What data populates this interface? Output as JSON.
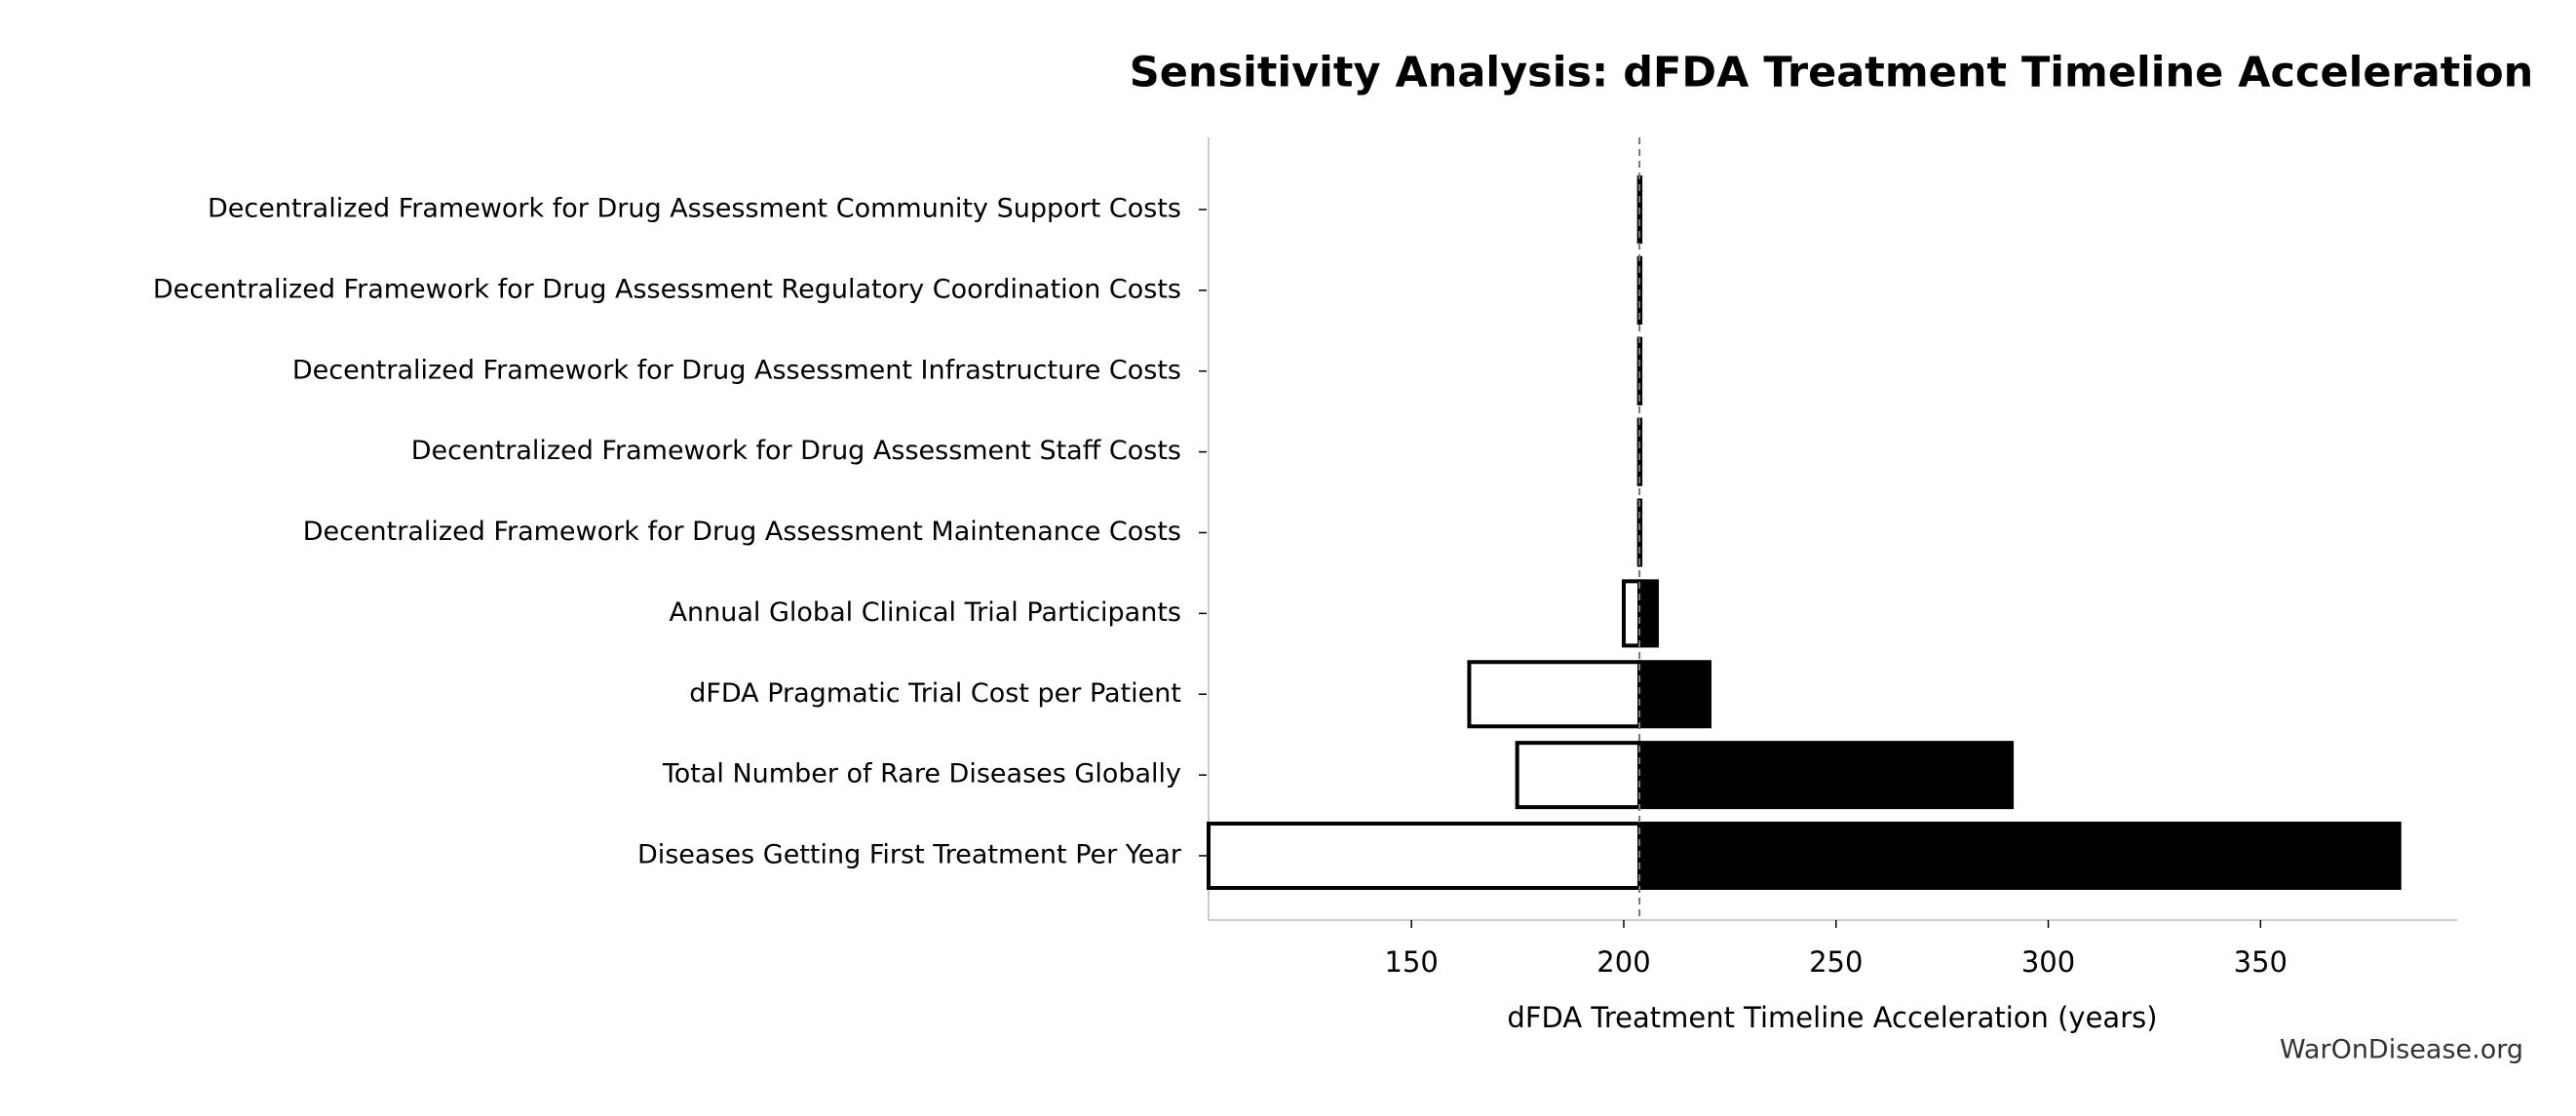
{
  "chart_data": {
    "type": "tornado",
    "title": "Sensitivity Analysis: dFDA Treatment Timeline Acceleration",
    "xlabel": "dFDA Treatment Timeline Acceleration (years)",
    "watermark": "WarOnDisease.org",
    "categories": [
      "Decentralized Framework for Drug Assessment Community Support Costs",
      "Decentralized Framework for Drug Assessment Regulatory Coordination Costs",
      "Decentralized Framework for Drug Assessment Infrastructure Costs",
      "Decentralized Framework for Drug Assessment Staff Costs",
      "Decentralized Framework for Drug Assessment Maintenance Costs",
      "Annual Global Clinical Trial Participants",
      "dFDA Pragmatic Trial Cost per Patient",
      "Total Number of Rare Diseases Globally",
      "Diseases Getting First Treatment Per Year"
    ],
    "baseline": 203.7,
    "low": [
      203.6,
      203.6,
      203.6,
      203.6,
      203.6,
      200,
      163.6,
      174.9,
      102.2
    ],
    "high": [
      203.8,
      203.8,
      203.8,
      203.8,
      203.8,
      207.8,
      220.2,
      291.4,
      382.7
    ],
    "low_color": "#ffffff",
    "high_color": "#000000",
    "xlim": [
      102.2,
      396.3
    ],
    "xticks": [
      150,
      200,
      250,
      300,
      350
    ]
  }
}
